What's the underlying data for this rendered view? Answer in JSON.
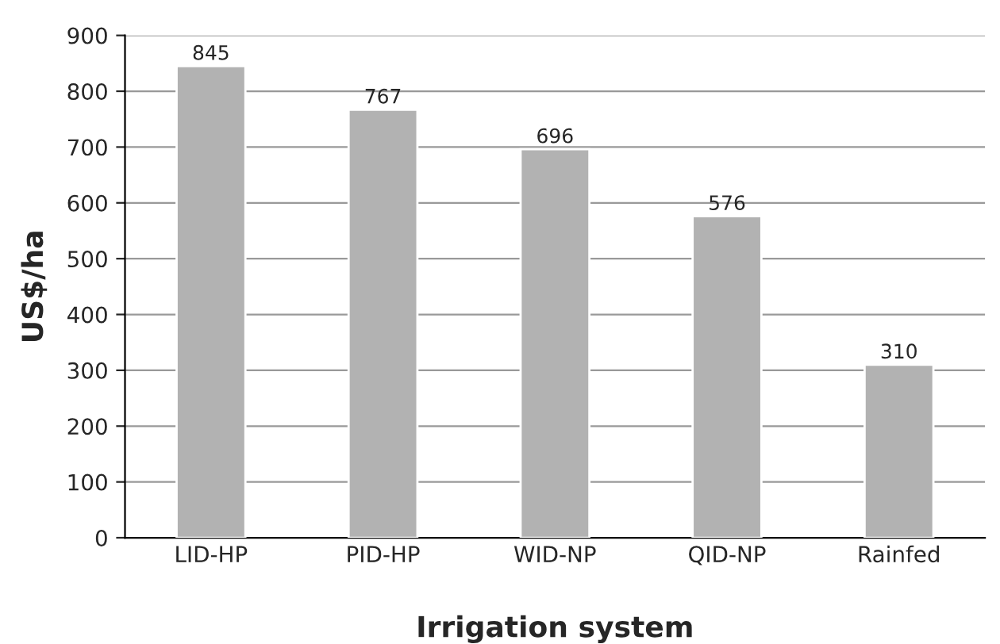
{
  "chart_data": {
    "type": "bar",
    "xlabel": "Irrigation system",
    "ylabel": "US$/ha",
    "categories": [
      "LID-HP",
      "PID-HP",
      "WID-NP",
      "QID-NP",
      "Rainfed"
    ],
    "values": [
      845,
      767,
      696,
      576,
      310
    ],
    "color": "#b2b2b2",
    "ylim": [
      0,
      900
    ],
    "yticks": [
      0,
      100,
      200,
      300,
      400,
      500,
      600,
      700,
      800,
      900
    ],
    "grid": "y",
    "data_labels": true
  }
}
